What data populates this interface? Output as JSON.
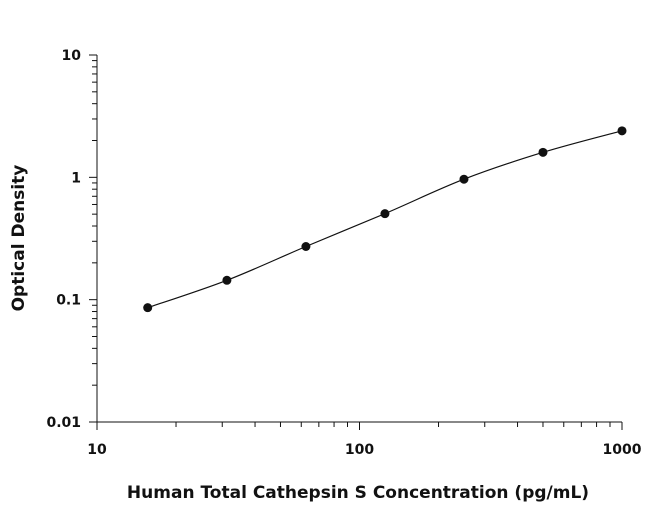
{
  "chart_data": {
    "type": "scatter",
    "xlabel": "Human Total Cathepsin S Concentration (pg/mL)",
    "ylabel": "Optical Density",
    "xscale": "log",
    "yscale": "log",
    "xlim": [
      10,
      1000
    ],
    "ylim": [
      0.01,
      10
    ],
    "xticks": [
      10,
      100,
      1000
    ],
    "xtick_labels": [
      "10",
      "100",
      "1000"
    ],
    "yticks": [
      0.01,
      0.1,
      1,
      10
    ],
    "ytick_labels": [
      "0.01",
      "0.1",
      "1",
      "10"
    ],
    "grid": false,
    "legend": false,
    "series": [
      {
        "x": [
          15.6,
          31.25,
          62.5,
          125,
          250,
          500,
          1000
        ],
        "y": [
          0.086,
          0.144,
          0.272,
          0.505,
          0.965,
          1.6,
          2.4
        ]
      }
    ]
  }
}
